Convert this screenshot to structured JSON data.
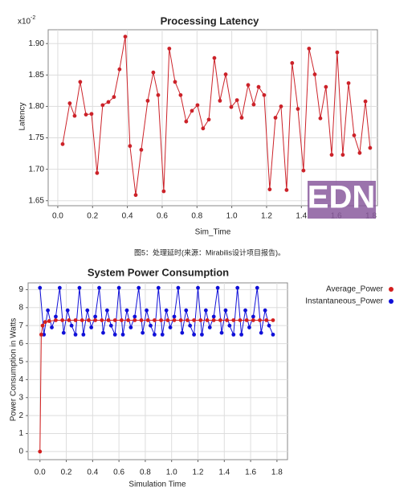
{
  "chart_data": [
    {
      "type": "line",
      "title": "Processing Latency",
      "y_multiplier": {
        "base": "x10",
        "exponent": "-2"
      },
      "xlabel": "Sim_Time",
      "ylabel": "Latency",
      "color": "#cc2229",
      "grid": true,
      "x": [
        0.028,
        0.069,
        0.097,
        0.129,
        0.162,
        0.194,
        0.226,
        0.258,
        0.291,
        0.323,
        0.355,
        0.388,
        0.415,
        0.448,
        0.48,
        0.517,
        0.549,
        0.577,
        0.609,
        0.641,
        0.674,
        0.706,
        0.738,
        0.771,
        0.803,
        0.835,
        0.868,
        0.9,
        0.932,
        0.965,
        0.997,
        1.03,
        1.057,
        1.094,
        1.126,
        1.154,
        1.186,
        1.218,
        1.251,
        1.283,
        1.315,
        1.347,
        1.38,
        1.412,
        1.444,
        1.477,
        1.509,
        1.541,
        1.574,
        1.606,
        1.638,
        1.671,
        1.703,
        1.735,
        1.768,
        1.795
      ],
      "values": [
        1.74,
        1.805,
        1.785,
        1.839,
        1.787,
        1.788,
        1.694,
        1.802,
        1.807,
        1.815,
        1.859,
        1.911,
        1.737,
        1.659,
        1.731,
        1.809,
        1.854,
        1.818,
        1.665,
        1.892,
        1.839,
        1.818,
        1.776,
        1.793,
        1.802,
        1.765,
        1.779,
        1.877,
        1.809,
        1.851,
        1.799,
        1.81,
        1.782,
        1.834,
        1.803,
        1.831,
        1.818,
        1.668,
        1.782,
        1.8,
        1.667,
        1.869,
        1.796,
        1.698,
        1.892,
        1.851,
        1.781,
        1.831,
        1.723,
        1.886,
        1.723,
        1.837,
        1.754,
        1.726,
        1.808,
        1.734
      ],
      "xlim": [
        -0.055,
        1.837
      ],
      "ylim": [
        1.642,
        1.922
      ],
      "xticks": [
        {
          "value": 0,
          "label": "0.0"
        },
        0.2,
        0.4,
        0.6,
        0.8,
        {
          "value": 1,
          "label": "1.0"
        },
        1.2,
        1.4,
        1.6,
        1.8
      ],
      "yticks": [
        1.65,
        {
          "value": 1.7,
          "label": "1.70"
        },
        1.75,
        {
          "value": 1.8,
          "label": "1.80"
        },
        1.85,
        {
          "value": 1.9,
          "label": "1.90"
        }
      ]
    },
    {
      "type": "line",
      "title": "System Power Consumption",
      "xlabel": "Simulation Time",
      "ylabel": "Power Consumption in Watts",
      "grid": true,
      "legend": "right",
      "series": [
        {
          "name": "Average_Power",
          "color": "#d41f1f",
          "x": [
            0,
            0.01,
            0.02,
            0.04,
            0.07,
            0.12,
            0.17,
            0.22,
            0.27,
            0.32,
            0.37,
            0.42,
            0.47,
            0.52,
            0.57,
            0.62,
            0.67,
            0.72,
            0.77,
            0.82,
            0.87,
            0.92,
            0.97,
            1.02,
            1.07,
            1.12,
            1.17,
            1.22,
            1.27,
            1.32,
            1.37,
            1.42,
            1.47,
            1.52,
            1.57,
            1.62,
            1.67,
            1.72,
            1.77
          ],
          "values": [
            0,
            6.5,
            7.0,
            7.2,
            7.25,
            7.3,
            7.3,
            7.3,
            7.3,
            7.3,
            7.3,
            7.3,
            7.3,
            7.3,
            7.3,
            7.3,
            7.3,
            7.3,
            7.3,
            7.3,
            7.3,
            7.3,
            7.3,
            7.3,
            7.3,
            7.3,
            7.3,
            7.3,
            7.3,
            7.3,
            7.3,
            7.3,
            7.3,
            7.3,
            7.3,
            7.3,
            7.3,
            7.3,
            7.3
          ]
        },
        {
          "name": "Instantaneous_Power",
          "color": "#1010d8",
          "x": [
            0,
            0.03,
            0.06,
            0.09,
            0.12,
            0.15,
            0.18,
            0.21,
            0.24,
            0.27,
            0.3,
            0.33,
            0.36,
            0.39,
            0.42,
            0.45,
            0.48,
            0.51,
            0.54,
            0.57,
            0.6,
            0.63,
            0.66,
            0.69,
            0.72,
            0.75,
            0.78,
            0.81,
            0.84,
            0.87,
            0.9,
            0.93,
            0.96,
            0.99,
            1.02,
            1.05,
            1.08,
            1.11,
            1.14,
            1.17,
            1.2,
            1.23,
            1.26,
            1.29,
            1.32,
            1.35,
            1.38,
            1.41,
            1.44,
            1.47,
            1.5,
            1.53,
            1.56,
            1.59,
            1.62,
            1.65,
            1.68,
            1.71,
            1.74,
            1.77
          ],
          "values": [
            9.1,
            6.5,
            7.85,
            6.9,
            7.5,
            9.1,
            6.6,
            7.85,
            7.0,
            6.5,
            9.1,
            6.5,
            7.85,
            6.9,
            7.5,
            9.1,
            6.6,
            7.85,
            7.0,
            6.5,
            9.1,
            6.5,
            7.85,
            6.9,
            7.5,
            9.1,
            6.6,
            7.85,
            7.0,
            6.5,
            9.1,
            6.5,
            7.85,
            6.9,
            7.5,
            9.1,
            6.6,
            7.85,
            7.0,
            6.5,
            9.1,
            6.5,
            7.85,
            6.9,
            7.5,
            9.1,
            6.6,
            7.85,
            7.0,
            6.5,
            9.1,
            6.5,
            7.85,
            6.9,
            7.5,
            9.1,
            6.6,
            7.85,
            7.0,
            6.5
          ]
        }
      ],
      "xlim": [
        -0.09,
        1.88
      ],
      "ylim": [
        -0.45,
        9.375
      ],
      "xticks": [
        {
          "value": 0,
          "label": "0.0"
        },
        0.2,
        0.4,
        0.6,
        0.8,
        {
          "value": 1,
          "label": "1.0"
        },
        1.2,
        1.4,
        1.6,
        1.8
      ],
      "yticks": [
        0,
        1,
        2,
        3,
        4,
        5,
        6,
        7,
        8,
        9
      ]
    }
  ],
  "caption": "图5：处理延时(来源：Mirabilis设计项目报告)。",
  "watermark": "EDN"
}
